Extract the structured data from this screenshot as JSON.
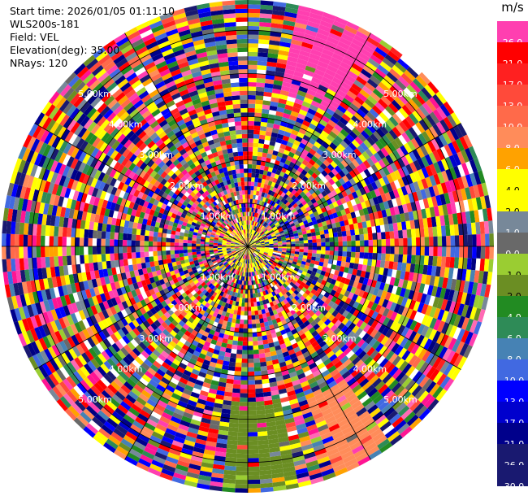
{
  "info": {
    "start_time": "Start time: 2026/01/05 01:11:10",
    "site": "WLS200s-181",
    "field": "Field: VEL",
    "elevation": "Elevation(deg): 35.00",
    "nrays": "NRays: 120"
  },
  "colorbar": {
    "unit": "m/s",
    "levels": [
      {
        "label": "26.0",
        "color": "#ff3fb0"
      },
      {
        "label": "21.0",
        "color": "#ff0000"
      },
      {
        "label": "17.0",
        "color": "#ff2020"
      },
      {
        "label": "13.0",
        "color": "#ff4a3a"
      },
      {
        "label": "10.0",
        "color": "#ff6a4a"
      },
      {
        "label": "8.0",
        "color": "#ff8c5a"
      },
      {
        "label": "6.0",
        "color": "#ffa200"
      },
      {
        "label": "4.0",
        "color": "#ffff00"
      },
      {
        "label": "2.0",
        "color": "#ffff00"
      },
      {
        "label": "1.0",
        "color": "#778899"
      },
      {
        "label": "0.0",
        "color": "#696969"
      },
      {
        "label": "-1.0",
        "color": "#9acd32"
      },
      {
        "label": "-2.0",
        "color": "#6b8e23"
      },
      {
        "label": "-4.0",
        "color": "#228b22"
      },
      {
        "label": "-6.0",
        "color": "#2e8b57"
      },
      {
        "label": "-8.0",
        "color": "#4682b4"
      },
      {
        "label": "-10.0",
        "color": "#4169e1"
      },
      {
        "label": "-13.0",
        "color": "#0000ff"
      },
      {
        "label": "-17.0",
        "color": "#0000cd"
      },
      {
        "label": "-21.0",
        "color": "#00008b"
      },
      {
        "label": "-26.0",
        "color": "#191970"
      },
      {
        "label": "-30.0",
        "color": "#191970"
      }
    ]
  },
  "chart_data": {
    "type": "heatmap",
    "field": "VEL",
    "nrays": 120,
    "elevation_deg": 35.0,
    "range_rings_km": [
      1.0,
      2.0,
      3.0,
      4.0,
      5.0
    ],
    "ring_labels": {
      "1": "1.00km",
      "2": "2.00km",
      "3": "3.00km",
      "4": "4.00km",
      "5": "5.00km"
    },
    "notable_sectors": [
      {
        "azimuth_range_deg": [
          12,
          32
        ],
        "range_km": [
          3.6,
          5.8
        ],
        "value_ms": 26.0
      },
      {
        "azimuth_range_deg": [
          145,
          160
        ],
        "range_km": [
          3.8,
          5.6
        ],
        "value_ms": 8.0
      },
      {
        "azimuth_range_deg": [
          168,
          186
        ],
        "range_km": [
          3.6,
          5.6
        ],
        "value_ms": -2.0
      }
    ]
  }
}
